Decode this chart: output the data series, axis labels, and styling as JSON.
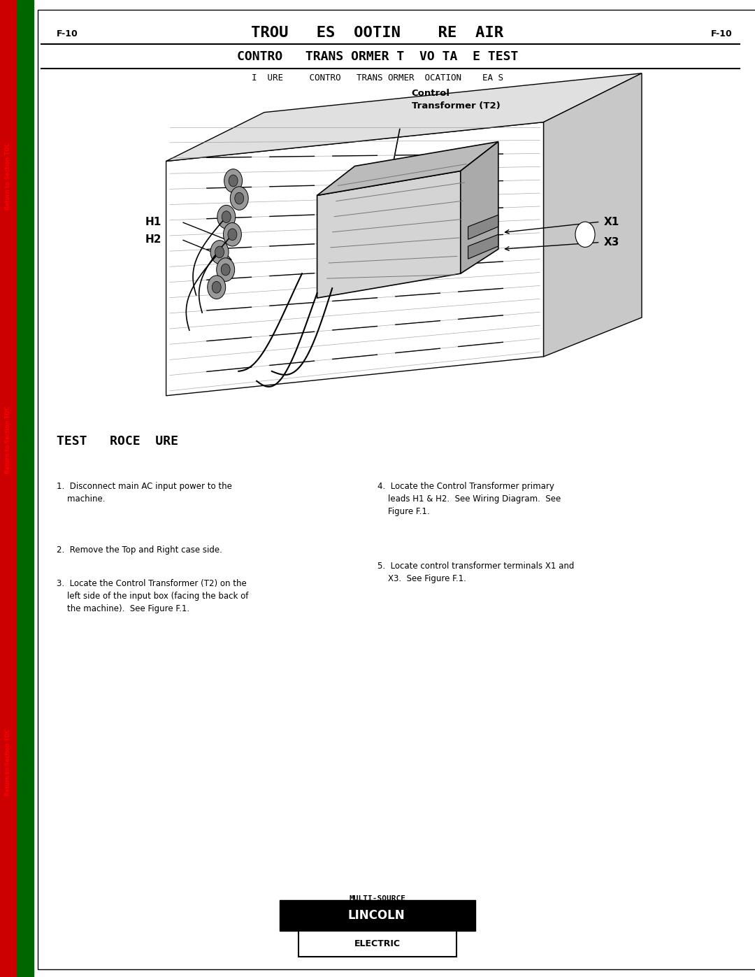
{
  "page_width": 10.8,
  "page_height": 13.97,
  "bg_color": "#ffffff",
  "left_bar_red_color": "#cc0000",
  "left_bar_green_color": "#006600",
  "page_label": "F-10",
  "title_main": "TROU   ES  OOTIN    RE  AIR",
  "title_sub": "CONTRO   TRANS ORMER T  VO TA  E TEST",
  "figure_caption": "I  URE     CONTRO   TRANS ORMER  OCATION    EA S",
  "section_title": "TEST   ROCE  URE",
  "step1": "1.  Disconnect main AC input power to the\n    machine.",
  "step2": "2.  Remove the Top and Right case side.",
  "step3": "3.  Locate the Control Transformer (T2) on the\n    left side of the input box (facing the back of\n    the machine).  See Figure F.1.",
  "step4": "4.  Locate the Control Transformer primary\n    leads H1 & H2.  See Wiring Diagram.  See\n    Figure F.1.",
  "step5": "5.  Locate control transformer terminals X1 and\n    X3.  See Figure F.1.",
  "sidebar_red_text": "Return to Section TOC",
  "sidebar_green_text": "Return to Master TOC",
  "footer_text1": "MULTI-SOURCE",
  "footer_text2": "LINCOLN",
  "footer_text3": "ELECTRIC",
  "label_H1": "H1",
  "label_H2": "H2",
  "label_X1": "X1",
  "label_X3": "X3",
  "label_CT_line1": "Control",
  "label_CT_line2": "Transformer (T2)"
}
